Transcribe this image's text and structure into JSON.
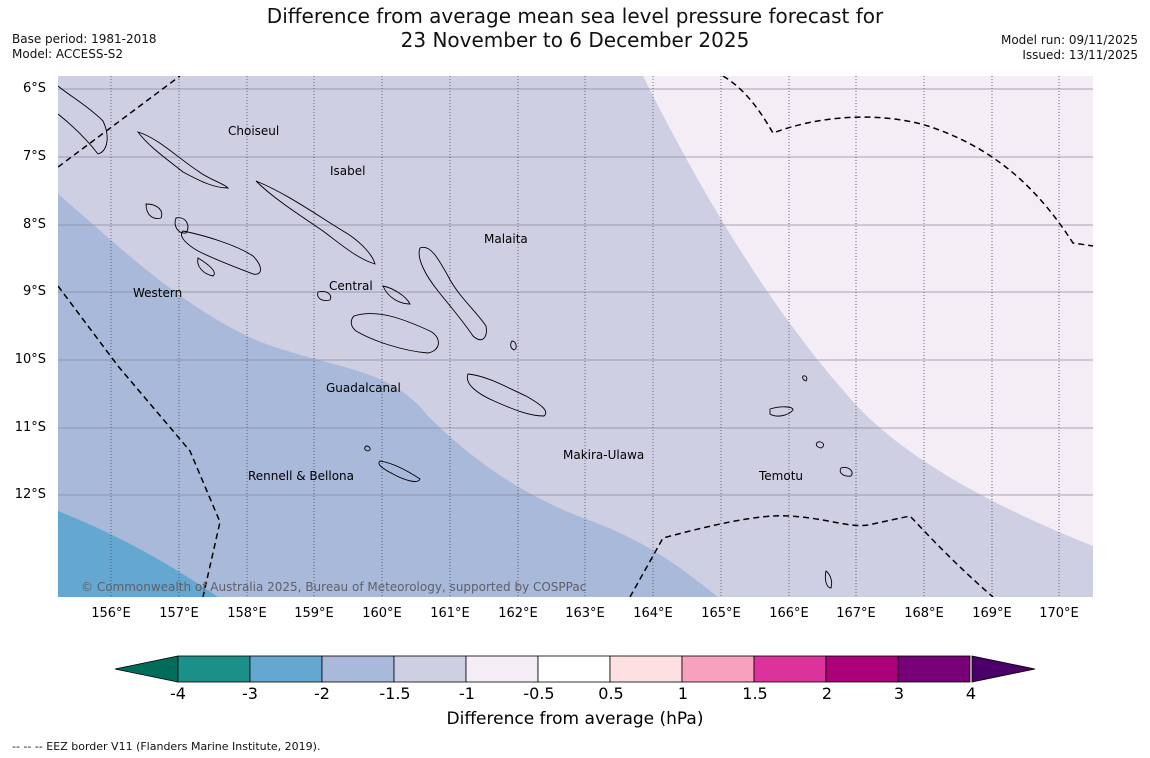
{
  "header": {
    "title_line1": "Difference from average mean sea level pressure forecast for",
    "title_line2": "23 November to 6 December 2025",
    "base_period": "Base period: 1981-2018",
    "model": "Model: ACCESS-S2",
    "model_run": "Model run: 09/11/2025",
    "issued": "Issued: 13/11/2025"
  },
  "map": {
    "lat_labels": [
      "6°S",
      "7°S",
      "8°S",
      "9°S",
      "10°S",
      "11°S",
      "12°S"
    ],
    "lon_labels": [
      "156°E",
      "157°E",
      "158°E",
      "159°E",
      "160°E",
      "161°E",
      "162°E",
      "163°E",
      "164°E",
      "165°E",
      "166°E",
      "167°E",
      "168°E",
      "169°E",
      "170°E"
    ],
    "places": [
      "Choiseul",
      "Isabel",
      "Malaita",
      "Central",
      "Western",
      "Guadalcanal",
      "Makira-Ulawa",
      "Rennell & Bellona",
      "Temotu"
    ],
    "copyright": "© Commonwealth of Australia 2025, Bureau of Meteorology, supported by COSPPac"
  },
  "colorbar": {
    "title": "Difference from average (hPa)",
    "tick_labels": [
      "-4",
      "-3",
      "-2",
      "-1.5",
      "-1",
      "-0.5",
      "0.5",
      "1",
      "1.5",
      "2",
      "3",
      "4"
    ],
    "colors": [
      "#1a9089",
      "#64a8d2",
      "#a8b9da",
      "#cfcfe4",
      "#f4edf6",
      "#ffffff",
      "#fde0e1",
      "#f7a1be",
      "#dc329c",
      "#ac0178",
      "#790178"
    ],
    "under_color": "#006d5a",
    "over_color": "#4b0069"
  },
  "footnote": "--  --  -- EEZ border V11 (Flanders Marine Institute, 2019)."
}
